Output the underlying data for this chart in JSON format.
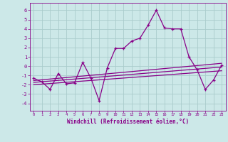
{
  "x": [
    0,
    1,
    2,
    3,
    4,
    5,
    6,
    7,
    8,
    9,
    10,
    11,
    12,
    13,
    14,
    15,
    16,
    17,
    18,
    19,
    20,
    21,
    22,
    23
  ],
  "y_main": [
    -1.3,
    -1.7,
    -2.5,
    -0.8,
    -1.9,
    -1.8,
    0.4,
    -1.3,
    -3.7,
    -0.2,
    1.9,
    1.9,
    2.7,
    3.0,
    4.4,
    6.0,
    4.1,
    4.0,
    4.0,
    1.0,
    -0.4,
    -2.5,
    -1.5,
    0.1
  ],
  "line_color": "#880088",
  "bg_color": "#cce8e8",
  "grid_color": "#aacccc",
  "xlabel": "Windchill (Refroidissement éolien,°C)",
  "ylabel_ticks": [
    -4,
    -3,
    -2,
    -1,
    0,
    1,
    2,
    3,
    4,
    5,
    6
  ],
  "xlim": [
    -0.5,
    23.5
  ],
  "ylim": [
    -4.8,
    6.8
  ],
  "trend1_x": [
    0,
    23
  ],
  "trend1_y": [
    -1.55,
    0.3
  ],
  "trend2_x": [
    0,
    23
  ],
  "trend2_y": [
    -2.0,
    -0.5
  ],
  "trend3_x": [
    0,
    23
  ],
  "trend3_y": [
    -1.75,
    -0.1
  ]
}
